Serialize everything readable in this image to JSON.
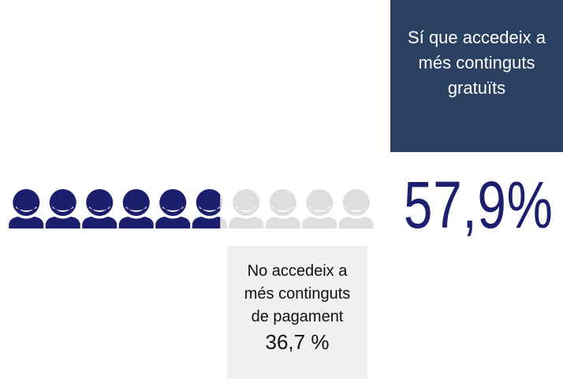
{
  "chart_data": {
    "type": "pictogram",
    "categories": [
      "Sí que accedeix a més continguts gratuïts",
      "No accedeix a més continguts de pagament"
    ],
    "values": [
      57.9,
      36.7
    ],
    "value_labels": [
      "57,9%",
      "36,7 %"
    ],
    "xlim": [
      0,
      100
    ],
    "color": "#1b1f6e"
  }
}
